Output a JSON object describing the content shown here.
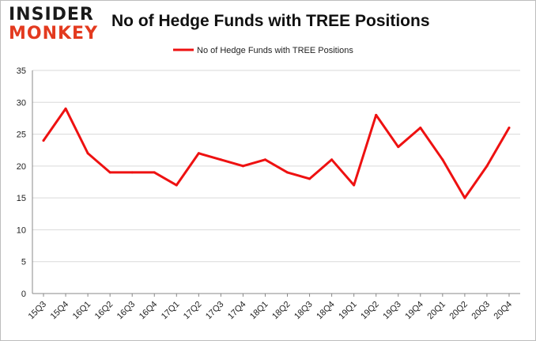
{
  "logo": {
    "line1": "INSIDER",
    "line2": "MONKEY"
  },
  "colors": {
    "series": "#ee1111",
    "grid": "#d9d9d9",
    "logo_accent": "#e33a1f"
  },
  "chart_data": {
    "type": "line",
    "title": "No of Hedge Funds with TREE Positions",
    "xlabel": "",
    "ylabel": "",
    "ylim": [
      0,
      35
    ],
    "yticks": [
      0,
      5,
      10,
      15,
      20,
      25,
      30,
      35
    ],
    "grid": true,
    "legend_position": "top-center",
    "categories": [
      "15Q3",
      "15Q4",
      "16Q1",
      "16Q2",
      "16Q3",
      "16Q4",
      "17Q1",
      "17Q2",
      "17Q3",
      "17Q4",
      "18Q1",
      "18Q2",
      "18Q3",
      "18Q4",
      "19Q1",
      "19Q2",
      "19Q3",
      "19Q4",
      "20Q1",
      "20Q2",
      "20Q3",
      "20Q4"
    ],
    "series": [
      {
        "name": "No of Hedge Funds with TREE Positions",
        "values": [
          24,
          29,
          22,
          19,
          19,
          19,
          17,
          22,
          21,
          20,
          21,
          19,
          18,
          21,
          17,
          28,
          23,
          26,
          21,
          15,
          20,
          26
        ]
      }
    ]
  }
}
